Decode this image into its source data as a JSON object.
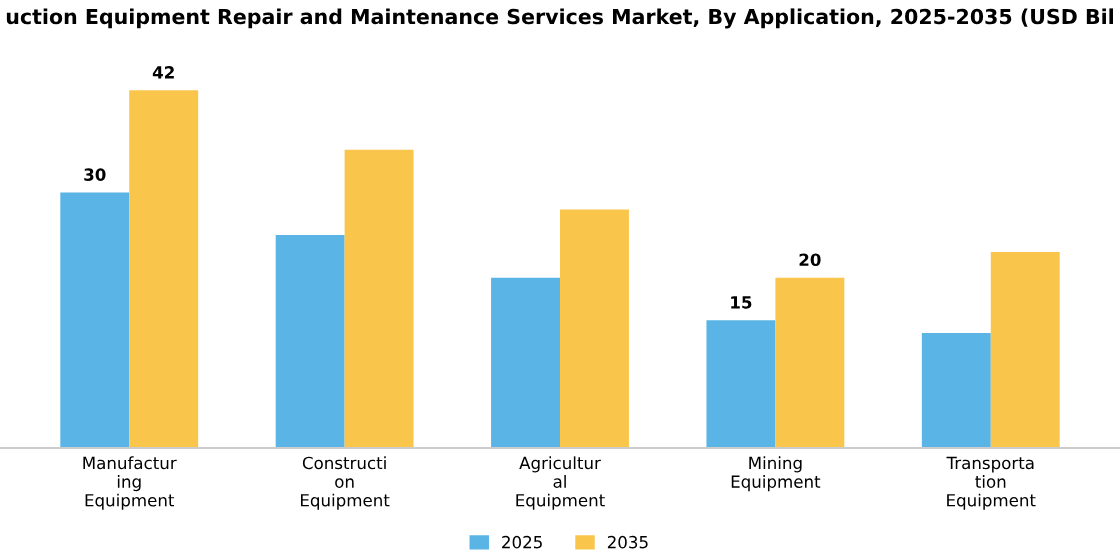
{
  "chart_data": {
    "type": "bar",
    "title": "uction Equipment Repair and Maintenance Services Market, By Application, 2025-2035 (USD Bil",
    "categories": [
      "Manufactur\ning\nEquipment",
      "Constructi\non\nEquipment",
      "Agricultur\nal\nEquipment",
      "Mining\nEquipment",
      "Transporta\ntion\nEquipment"
    ],
    "series": [
      {
        "name": "2025",
        "color": "#5ab4e5",
        "values": [
          30,
          25,
          20,
          15,
          13.5
        ],
        "value_labels": [
          "30",
          null,
          null,
          "15",
          null
        ]
      },
      {
        "name": "2035",
        "color": "#f9c54b",
        "values": [
          42,
          35,
          28,
          20,
          23
        ],
        "value_labels": [
          "42",
          null,
          null,
          "20",
          null
        ]
      }
    ],
    "legend": "bottom",
    "grid": false
  }
}
